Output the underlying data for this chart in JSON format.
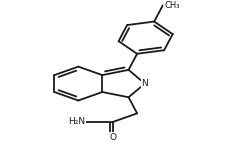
{
  "bg_color": "#ffffff",
  "line_color": "#1a1a1a",
  "line_width": 1.3,
  "figsize": [
    2.34,
    1.43
  ],
  "dpi": 100,
  "labels": {
    "N": "N",
    "O": "O",
    "NH2": "H₂N",
    "CH3": "CH₃"
  }
}
